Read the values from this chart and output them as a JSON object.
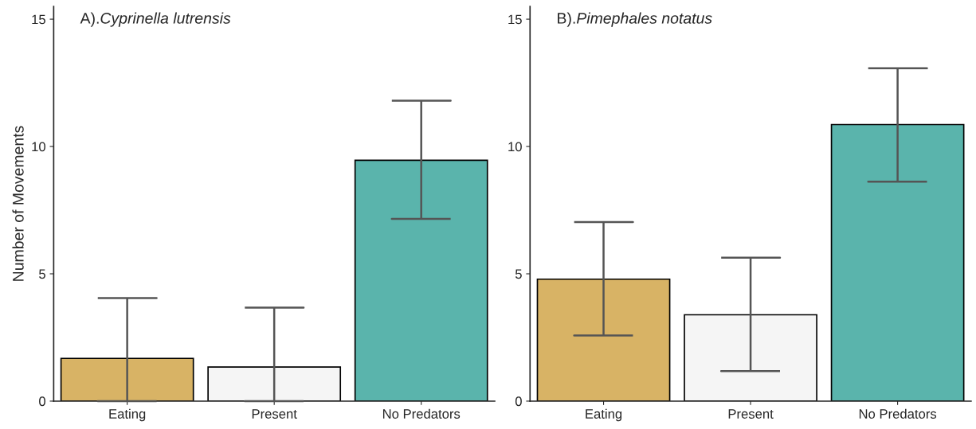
{
  "chart_data": [
    {
      "type": "bar",
      "title": "A).Cyprinella lutrensis",
      "ylabel": "Number of Movements",
      "categories": [
        "Eating",
        "Present",
        "No Predators"
      ],
      "values": [
        1.68,
        1.34,
        9.46
      ],
      "colors": [
        "#d8b365",
        "#f5f5f5",
        "#5ab4ac"
      ],
      "errors": [
        [
          0,
          4.05
        ],
        [
          0,
          3.67
        ],
        [
          7.16,
          11.8
        ]
      ],
      "ylim": [
        0,
        15.5
      ],
      "yticks": [
        0,
        5,
        10,
        15
      ],
      "grid": false,
      "legend": false
    },
    {
      "type": "bar",
      "title": "B).Pimephales notatus",
      "categories": [
        "Eating",
        "Present",
        "No Predators"
      ],
      "values": [
        4.79,
        3.39,
        10.86
      ],
      "colors": [
        "#d8b365",
        "#f5f5f5",
        "#5ab4ac"
      ],
      "errors": [
        [
          2.58,
          7.03
        ],
        [
          1.18,
          5.63
        ],
        [
          8.62,
          13.07
        ]
      ],
      "ylim": [
        0,
        15.5
      ],
      "yticks": [
        0,
        5,
        10,
        15
      ],
      "grid": false,
      "legend": false
    }
  ]
}
